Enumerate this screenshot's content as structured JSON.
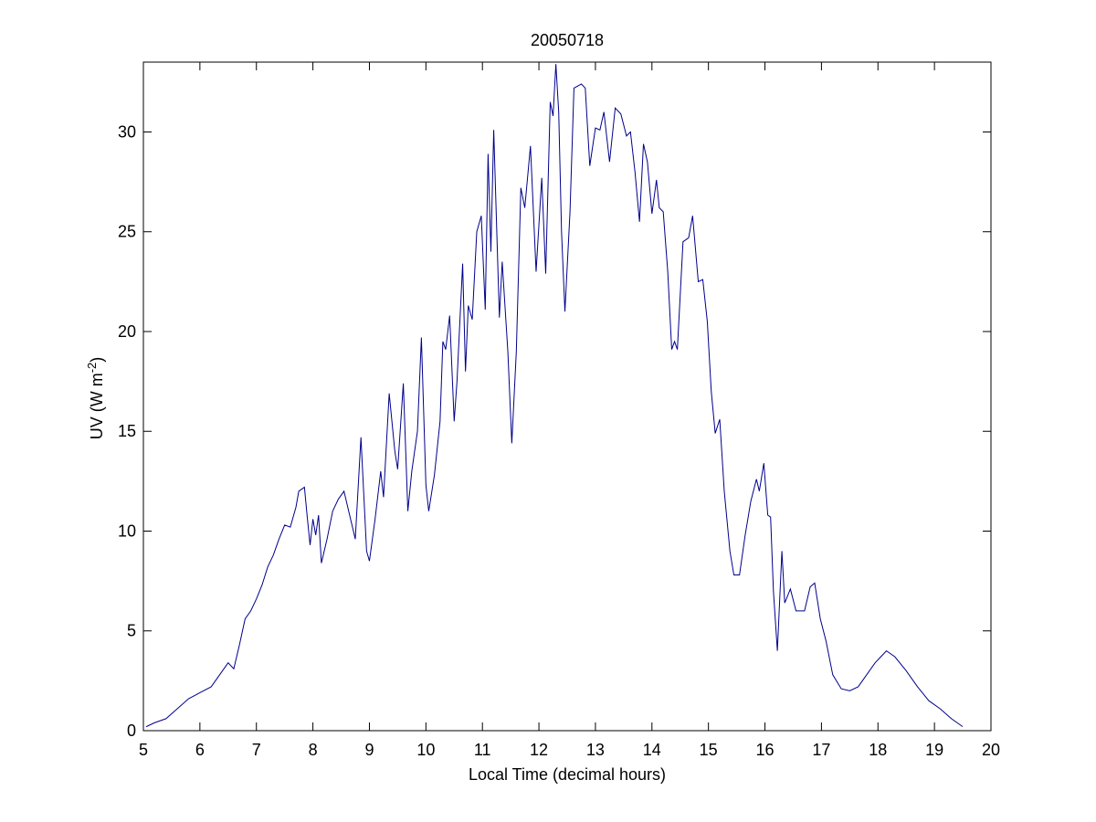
{
  "chart_data": {
    "type": "line",
    "title": "20050718",
    "xlabel": "Local Time (decimal hours)",
    "ylabel": {
      "text": "UV (W m",
      "superscript": "-2",
      "suffix": ")"
    },
    "xlim": [
      5,
      20
    ],
    "ylim": [
      0,
      33.5
    ],
    "xticks": [
      5,
      6,
      7,
      8,
      9,
      10,
      11,
      12,
      13,
      14,
      15,
      16,
      17,
      18,
      19,
      20
    ],
    "yticks": [
      0,
      5,
      10,
      15,
      20,
      25,
      30
    ],
    "grid": false,
    "series": [
      {
        "color": "#00008b",
        "x": [
          5.05,
          5.2,
          5.4,
          5.6,
          5.8,
          6.0,
          6.2,
          6.4,
          6.5,
          6.6,
          6.7,
          6.8,
          6.9,
          7.0,
          7.1,
          7.2,
          7.3,
          7.4,
          7.5,
          7.6,
          7.7,
          7.75,
          7.85,
          7.9,
          7.95,
          8.0,
          8.05,
          8.1,
          8.15,
          8.25,
          8.35,
          8.45,
          8.55,
          8.65,
          8.75,
          8.85,
          8.95,
          9.0,
          9.1,
          9.2,
          9.25,
          9.35,
          9.45,
          9.5,
          9.6,
          9.68,
          9.75,
          9.85,
          9.92,
          10.0,
          10.05,
          10.15,
          10.25,
          10.3,
          10.35,
          10.42,
          10.5,
          10.55,
          10.65,
          10.7,
          10.75,
          10.82,
          10.9,
          10.98,
          11.05,
          11.1,
          11.15,
          11.2,
          11.3,
          11.35,
          11.45,
          11.52,
          11.6,
          11.68,
          11.75,
          11.85,
          11.95,
          12.05,
          12.12,
          12.2,
          12.25,
          12.3,
          12.35,
          12.4,
          12.46,
          12.55,
          12.62,
          12.75,
          12.82,
          12.9,
          13.0,
          13.08,
          13.15,
          13.25,
          13.35,
          13.45,
          13.55,
          13.62,
          13.7,
          13.78,
          13.85,
          13.92,
          14.0,
          14.08,
          14.13,
          14.2,
          14.28,
          14.35,
          14.4,
          14.45,
          14.55,
          14.65,
          14.72,
          14.82,
          14.9,
          14.98,
          15.05,
          15.12,
          15.2,
          15.28,
          15.38,
          15.45,
          15.55,
          15.65,
          15.75,
          15.85,
          15.9,
          15.98,
          16.05,
          16.1,
          16.15,
          16.22,
          16.3,
          16.35,
          16.45,
          16.55,
          16.7,
          16.8,
          16.88,
          16.98,
          17.08,
          17.2,
          17.35,
          17.5,
          17.65,
          17.8,
          17.95,
          18.05,
          18.15,
          18.3,
          18.5,
          18.7,
          18.9,
          19.1,
          19.3,
          19.5
        ],
        "values": [
          0.2,
          0.4,
          0.6,
          1.1,
          1.6,
          1.9,
          2.2,
          3.0,
          3.4,
          3.1,
          4.3,
          5.6,
          6.0,
          6.6,
          7.3,
          8.2,
          8.8,
          9.6,
          10.3,
          10.2,
          11.2,
          12.0,
          12.2,
          10.7,
          9.3,
          10.6,
          9.8,
          10.8,
          8.4,
          9.6,
          11.0,
          11.6,
          12.0,
          10.8,
          9.6,
          14.7,
          9.0,
          8.5,
          10.6,
          13.0,
          11.7,
          16.9,
          14.0,
          13.1,
          17.4,
          11.0,
          13.0,
          15.0,
          19.7,
          12.3,
          11.0,
          12.8,
          15.5,
          19.5,
          19.1,
          20.8,
          15.5,
          17.5,
          23.4,
          18.0,
          21.3,
          20.6,
          25.0,
          25.8,
          21.1,
          28.9,
          24.0,
          30.1,
          20.7,
          23.5,
          19.0,
          14.4,
          19.0,
          27.2,
          26.2,
          29.3,
          23.0,
          27.7,
          22.9,
          31.5,
          30.8,
          33.4,
          31.0,
          25.0,
          21.0,
          26.0,
          32.2,
          32.4,
          32.2,
          28.3,
          30.2,
          30.1,
          31.0,
          28.5,
          31.2,
          30.9,
          29.8,
          30.0,
          28.0,
          25.5,
          29.4,
          28.5,
          25.9,
          27.6,
          26.2,
          26.0,
          23.0,
          19.1,
          19.5,
          19.1,
          24.5,
          24.7,
          25.8,
          22.5,
          22.6,
          20.5,
          17.0,
          14.9,
          15.6,
          12.0,
          9.0,
          7.8,
          7.8,
          9.8,
          11.5,
          12.6,
          12.0,
          13.4,
          10.8,
          10.7,
          7.0,
          4.0,
          9.0,
          6.4,
          7.1,
          6.0,
          6.0,
          7.2,
          7.4,
          5.6,
          4.5,
          2.8,
          2.1,
          2.0,
          2.2,
          2.8,
          3.4,
          3.7,
          4.0,
          3.7,
          3.0,
          2.2,
          1.5,
          1.1,
          0.6,
          0.2
        ]
      }
    ]
  }
}
